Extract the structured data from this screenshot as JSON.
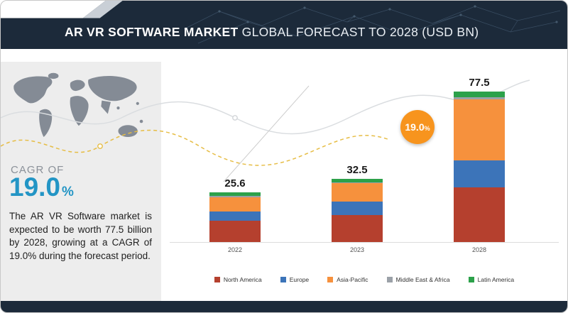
{
  "header": {
    "title_bold": "AR VR SOFTWARE MARKET",
    "title_rest": " GLOBAL FORECAST TO 2028 (USD BN)"
  },
  "sidebar": {
    "cagr_label": "CAGR OF",
    "cagr_value": "19.0",
    "cagr_unit": "%",
    "description": "The AR VR Software market is expected to be worth 77.5 billion by 2028, growing at a CAGR of 19.0% during the forecast period."
  },
  "badge": {
    "value": "19.0",
    "unit": "%",
    "color": "#f7941e"
  },
  "chart_data": {
    "type": "bar",
    "stacked": true,
    "title": "AR VR SOFTWARE MARKET GLOBAL FORECAST TO 2028 (USD BN)",
    "unit": "USD BN",
    "categories": [
      "2022",
      "2023",
      "2028"
    ],
    "totals": [
      "25.6",
      "32.5",
      "77.5"
    ],
    "cagr": "19.0%",
    "legend_position": "bottom",
    "axis_visible": false,
    "ylim": [
      0,
      80
    ],
    "series": [
      {
        "name": "North America",
        "color": "#b5402e",
        "values": [
          10.8,
          13.8,
          28.0
        ]
      },
      {
        "name": "Europe",
        "color": "#3c74b9",
        "values": [
          5.0,
          7.0,
          14.0
        ]
      },
      {
        "name": "Asia-Pacific",
        "color": "#f6913d",
        "values": [
          7.3,
          9.5,
          31.5
        ]
      },
      {
        "name": "Middle East & Africa",
        "color": "#9ba1a8",
        "values": [
          0.5,
          0.5,
          1.0
        ]
      },
      {
        "name": "Latin America",
        "color": "#2ca14a",
        "values": [
          2.0,
          1.7,
          3.0
        ]
      }
    ]
  },
  "colors": {
    "header_navy": "#1c2a3a",
    "accent_blue": "#2395c5",
    "badge_orange": "#f7941e",
    "sidebar_gray": "#ededed"
  }
}
